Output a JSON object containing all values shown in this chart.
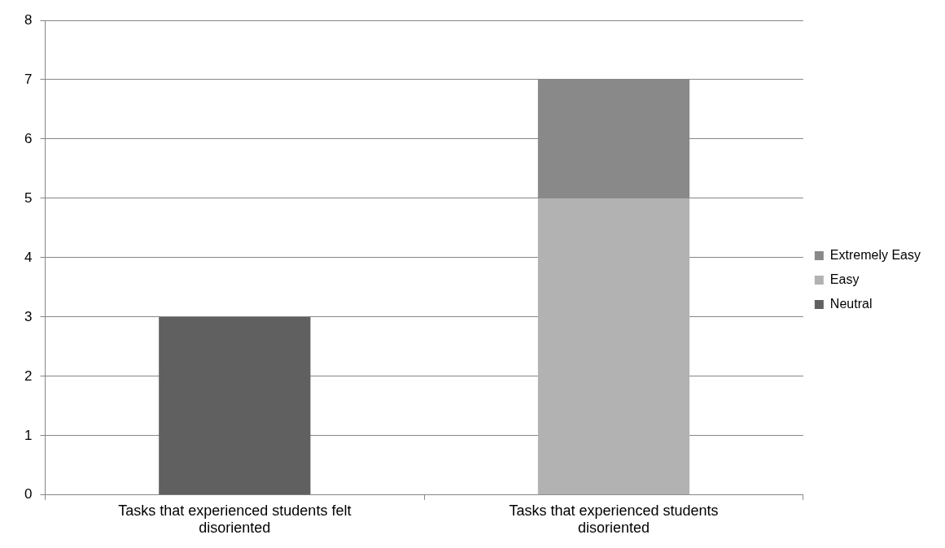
{
  "chart_data": {
    "type": "bar",
    "stacked": true,
    "categories": [
      "Tasks that experienced students felt disoriented",
      "Tasks that experienced students disoriented"
    ],
    "series": [
      {
        "name": "Neutral",
        "color": "#606060",
        "values": [
          3,
          null
        ]
      },
      {
        "name": "Easy",
        "color": "#b2b2b2",
        "values": [
          null,
          5
        ]
      },
      {
        "name": "Extremely Easy",
        "color": "#898989",
        "values": [
          null,
          2
        ]
      }
    ],
    "ylim": [
      0,
      8
    ],
    "yticks": [
      0,
      1,
      2,
      3,
      4,
      5,
      6,
      7,
      8
    ],
    "grid": "y",
    "legend": "right"
  }
}
